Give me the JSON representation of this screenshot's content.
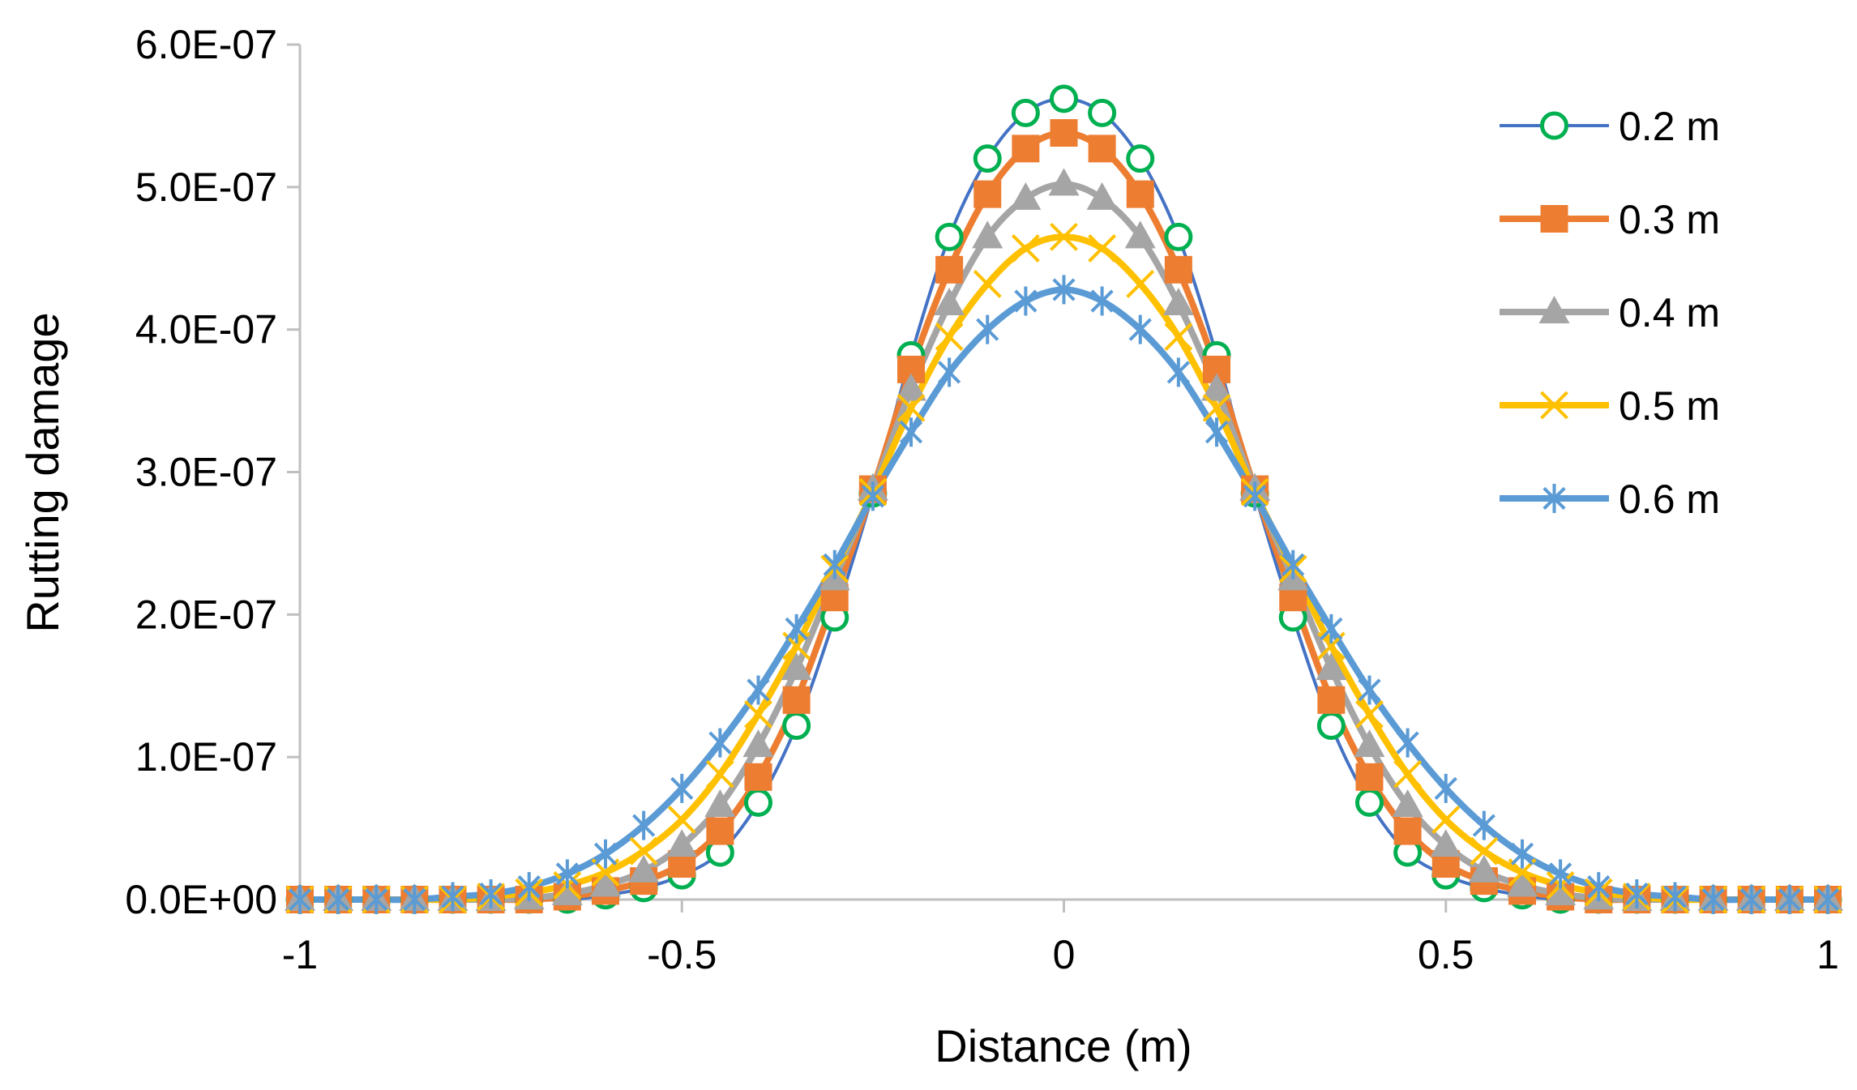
{
  "chart_data": {
    "type": "line",
    "title": "",
    "xlabel": "Distance (m)",
    "ylabel": "Rutting damage",
    "xlim": [
      -1,
      1
    ],
    "ylim": [
      0,
      6e-07
    ],
    "x_ticks": [
      -1,
      -0.5,
      0,
      0.5,
      1
    ],
    "x_tick_labels": [
      "-1",
      "-0.5",
      "0",
      "0.5",
      "1"
    ],
    "y_ticks": [
      0,
      1e-07,
      2e-07,
      3e-07,
      4e-07,
      5e-07,
      6e-07
    ],
    "y_tick_labels": [
      "0.0E+00",
      "1.0E-07",
      "2.0E-07",
      "3.0E-07",
      "4.0E-07",
      "5.0E-07",
      "6.0E-07"
    ],
    "grid": false,
    "legend_position": "top-right",
    "x": [
      -1,
      -0.95,
      -0.9,
      -0.85,
      -0.8,
      -0.75,
      -0.7,
      -0.65,
      -0.6,
      -0.55,
      -0.5,
      -0.45,
      -0.4,
      -0.35,
      -0.3,
      -0.25,
      -0.2,
      -0.15,
      -0.1,
      -0.05,
      0,
      0.05,
      0.1,
      0.15,
      0.2,
      0.25,
      0.3,
      0.35,
      0.4,
      0.45,
      0.5,
      0.55,
      0.6,
      0.65,
      0.7,
      0.75,
      0.8,
      0.85,
      0.9,
      0.95,
      1
    ],
    "series": [
      {
        "name": "0.2 m",
        "line_color": "#4472C4",
        "marker": "circle",
        "marker_color": "#00B050",
        "values": [
          0,
          0,
          0,
          0,
          0,
          0,
          0,
          0,
          3e-09,
          8e-09,
          1.7e-08,
          3.3e-08,
          6.8e-08,
          1.22e-07,
          1.98e-07,
          2.85e-07,
          3.82e-07,
          4.65e-07,
          5.2e-07,
          5.52e-07,
          5.62e-07,
          5.52e-07,
          5.2e-07,
          4.65e-07,
          3.82e-07,
          2.85e-07,
          1.98e-07,
          1.22e-07,
          6.8e-08,
          3.3e-08,
          1.7e-08,
          8e-09,
          3e-09,
          0,
          0,
          0,
          0,
          0,
          0,
          0,
          0
        ]
      },
      {
        "name": "0.3 m",
        "line_color": "#ED7D31",
        "marker": "square",
        "marker_color": "#ED7D31",
        "values": [
          0,
          0,
          0,
          0,
          0,
          0,
          0,
          2e-09,
          6e-09,
          1.3e-08,
          2.5e-08,
          4.8e-08,
          8.6e-08,
          1.4e-07,
          2.12e-07,
          2.88e-07,
          3.72e-07,
          4.42e-07,
          4.95e-07,
          5.27e-07,
          5.38e-07,
          5.27e-07,
          4.95e-07,
          4.42e-07,
          3.72e-07,
          2.88e-07,
          2.12e-07,
          1.4e-07,
          8.6e-08,
          4.8e-08,
          2.5e-08,
          1.3e-08,
          6e-09,
          2e-09,
          0,
          0,
          0,
          0,
          0,
          0,
          0
        ]
      },
      {
        "name": "0.4 m",
        "line_color": "#A5A5A5",
        "marker": "triangle",
        "marker_color": "#A5A5A5",
        "values": [
          0,
          0,
          0,
          0,
          0,
          0,
          1e-09,
          4e-09,
          1e-08,
          2e-08,
          3.8e-08,
          6.6e-08,
          1.08e-07,
          1.62e-07,
          2.25e-07,
          2.88e-07,
          3.58e-07,
          4.18e-07,
          4.65e-07,
          4.92e-07,
          5.02e-07,
          4.92e-07,
          4.65e-07,
          4.18e-07,
          3.58e-07,
          2.88e-07,
          2.25e-07,
          1.62e-07,
          1.08e-07,
          6.6e-08,
          3.8e-08,
          2e-08,
          1e-08,
          4e-09,
          1e-09,
          0,
          0,
          0,
          0,
          0,
          0
        ]
      },
      {
        "name": "0.5 m",
        "line_color": "#FFC000",
        "marker": "x",
        "marker_color": "#FFC000",
        "values": [
          0,
          0,
          0,
          0,
          0,
          2e-09,
          5e-09,
          1e-08,
          1.9e-08,
          3.4e-08,
          5.6e-08,
          8.8e-08,
          1.3e-07,
          1.78e-07,
          2.32e-07,
          2.86e-07,
          3.45e-07,
          3.95e-07,
          4.32e-07,
          4.57e-07,
          4.65e-07,
          4.57e-07,
          4.32e-07,
          3.95e-07,
          3.45e-07,
          2.86e-07,
          2.32e-07,
          1.78e-07,
          1.3e-07,
          8.8e-08,
          5.6e-08,
          3.4e-08,
          1.9e-08,
          1e-08,
          5e-09,
          2e-09,
          0,
          0,
          0,
          0,
          0
        ]
      },
      {
        "name": "0.6 m",
        "line_color": "#5B9BD5",
        "marker": "asterisk",
        "marker_color": "#5B9BD5",
        "values": [
          0,
          0,
          0,
          0,
          2e-09,
          4e-09,
          9e-09,
          1.8e-08,
          3.2e-08,
          5.2e-08,
          7.8e-08,
          1.1e-07,
          1.47e-07,
          1.9e-07,
          2.35e-07,
          2.83e-07,
          3.28e-07,
          3.7e-07,
          4e-07,
          4.2e-07,
          4.28e-07,
          4.2e-07,
          4e-07,
          3.7e-07,
          3.28e-07,
          2.83e-07,
          2.35e-07,
          1.9e-07,
          1.47e-07,
          1.1e-07,
          7.8e-08,
          5.2e-08,
          3.2e-08,
          1.8e-08,
          9e-09,
          4e-09,
          2e-09,
          0,
          0,
          0,
          0
        ]
      }
    ]
  }
}
